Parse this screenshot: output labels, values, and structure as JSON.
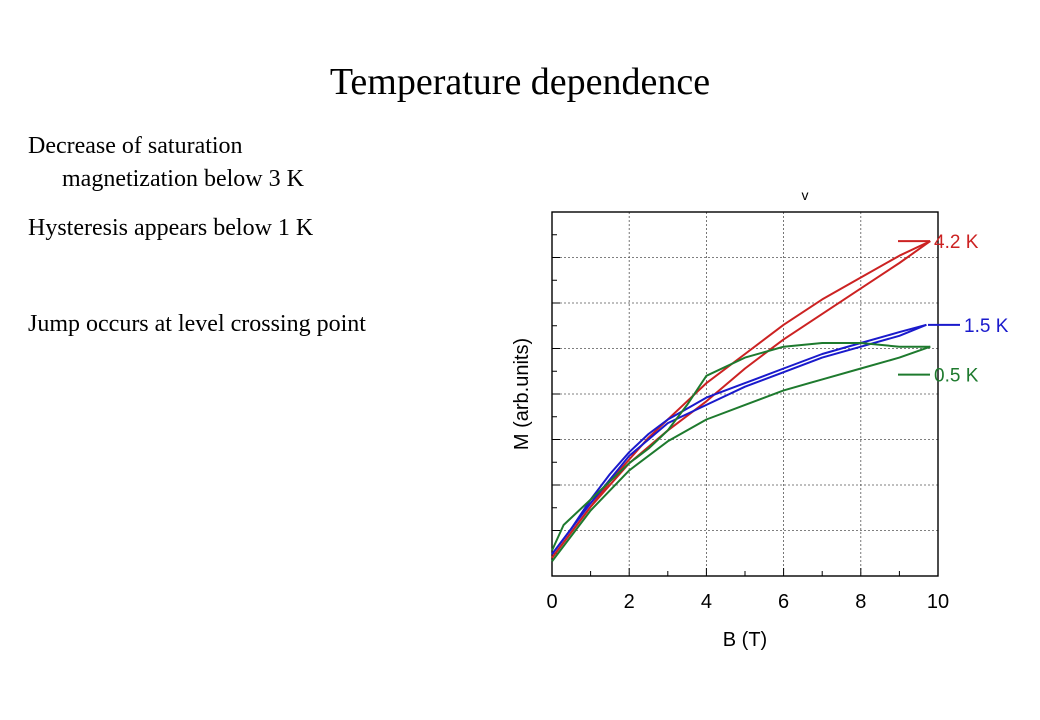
{
  "slide": {
    "title": "Temperature dependence",
    "bullets": [
      {
        "line1": "Decrease of saturation",
        "line2": "magnetization below 3 K"
      },
      {
        "line1": "Hysteresis appears below 1 K"
      },
      {
        "line1": "Jump occurs at level crossing point"
      }
    ]
  },
  "chart_data": {
    "type": "line",
    "title": "",
    "top_mark": "v",
    "xlabel": "B (T)",
    "ylabel": "M (arb.units)",
    "xlim": [
      0,
      10
    ],
    "ylim": [
      0,
      1
    ],
    "xticks": [
      "0",
      "2",
      "4",
      "6",
      "8",
      "10"
    ],
    "y_tick_labels_shown": false,
    "grid": true,
    "series": [
      {
        "name": "4.2 K",
        "color": "#cc2222",
        "branches": [
          {
            "x": [
              0,
              0.5,
              1,
              1.5,
              2,
              2.5,
              3,
              3.5,
              4,
              5,
              6,
              7,
              8,
              9,
              9.8
            ],
            "y": [
              0.05,
              0.12,
              0.19,
              0.26,
              0.32,
              0.38,
              0.43,
              0.48,
              0.53,
              0.61,
              0.69,
              0.76,
              0.82,
              0.88,
              0.92
            ]
          },
          {
            "x": [
              9.8,
              9,
              8,
              7,
              6,
              5,
              4,
              3,
              2,
              1,
              0
            ],
            "y": [
              0.92,
              0.86,
              0.79,
              0.72,
              0.65,
              0.57,
              0.48,
              0.4,
              0.31,
              0.19,
              0.05
            ]
          }
        ]
      },
      {
        "name": "1.5 K",
        "color": "#1a1acc",
        "branches": [
          {
            "x": [
              0,
              0.5,
              1,
              1.5,
              2,
              2.5,
              3,
              3.5,
              4,
              5,
              6,
              7,
              8,
              9,
              9.7
            ],
            "y": [
              0.06,
              0.13,
              0.21,
              0.28,
              0.34,
              0.39,
              0.43,
              0.46,
              0.49,
              0.53,
              0.57,
              0.61,
              0.64,
              0.67,
              0.69
            ]
          },
          {
            "x": [
              9.7,
              9,
              8,
              7,
              6,
              5,
              4,
              3,
              2,
              1,
              0
            ],
            "y": [
              0.69,
              0.66,
              0.63,
              0.6,
              0.56,
              0.52,
              0.47,
              0.42,
              0.33,
              0.2,
              0.06
            ]
          }
        ]
      },
      {
        "name": "0.5 K",
        "color": "#1e7a2e",
        "branches": [
          {
            "x": [
              0,
              0.3,
              0.7,
              1,
              1.5,
              2,
              2.5,
              3,
              3.5,
              4,
              5,
              6,
              7,
              8,
              9,
              9.8
            ],
            "y": [
              0.07,
              0.14,
              0.18,
              0.21,
              0.26,
              0.31,
              0.35,
              0.4,
              0.47,
              0.55,
              0.6,
              0.63,
              0.64,
              0.64,
              0.63,
              0.63
            ]
          },
          {
            "x": [
              9.8,
              9,
              8,
              7,
              6,
              5,
              4,
              3,
              2,
              1,
              0
            ],
            "y": [
              0.63,
              0.6,
              0.57,
              0.54,
              0.51,
              0.47,
              0.43,
              0.37,
              0.29,
              0.18,
              0.04
            ]
          }
        ]
      }
    ]
  }
}
